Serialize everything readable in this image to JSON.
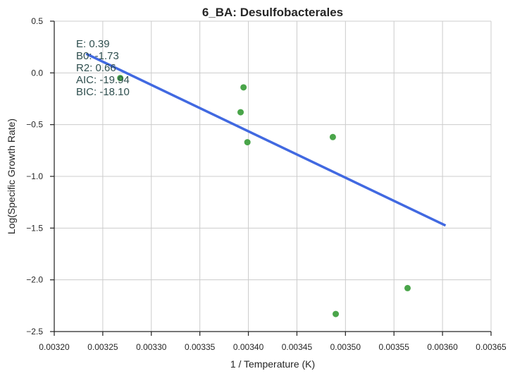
{
  "chart_data": {
    "type": "scatter",
    "title": "6_BA: Desulfobacterales",
    "xlabel": "1 / Temperature (K)",
    "ylabel": "Log(Specific Growth Rate)",
    "xlim": [
      0.0032,
      0.00365
    ],
    "ylim": [
      -2.5,
      0.5
    ],
    "grid": true,
    "x_ticks": [
      0.0032,
      0.00325,
      0.0033,
      0.00335,
      0.0034,
      0.00345,
      0.0035,
      0.00355,
      0.0036,
      0.00365
    ],
    "x_tick_labels": [
      "0.00320",
      "0.00325",
      "0.00330",
      "0.00335",
      "0.00340",
      "0.00345",
      "0.00350",
      "0.00355",
      "0.00360",
      "0.00365"
    ],
    "y_ticks": [
      0.5,
      0.0,
      -0.5,
      -1.0,
      -1.5,
      -2.0,
      -2.5
    ],
    "y_tick_labels": [
      "0.5",
      "0.0",
      "−0.5",
      "−1.0",
      "−1.5",
      "−2.0",
      "−2.5"
    ],
    "points": [
      {
        "x": 0.003268,
        "y": -0.05
      },
      {
        "x": 0.003395,
        "y": -0.14
      },
      {
        "x": 0.003392,
        "y": -0.38
      },
      {
        "x": 0.003399,
        "y": -0.67
      },
      {
        "x": 0.003487,
        "y": -0.62
      },
      {
        "x": 0.00349,
        "y": -2.33
      },
      {
        "x": 0.003564,
        "y": -2.08
      }
    ],
    "fit_line": {
      "x": [
        0.003234,
        0.003602
      ],
      "y": [
        0.18,
        -1.47
      ]
    },
    "annotation_lines": [
      "E:  0.39",
      "B0:  -1.73",
      "R2:  0.66",
      "AIC: -19.94",
      "BIC: -18.10"
    ],
    "colors": {
      "points": "#4aa54a",
      "fit_line": "#4169e1",
      "grid": "#cccccc",
      "axis": "#262626",
      "annotation": "#2f4f4f"
    }
  }
}
